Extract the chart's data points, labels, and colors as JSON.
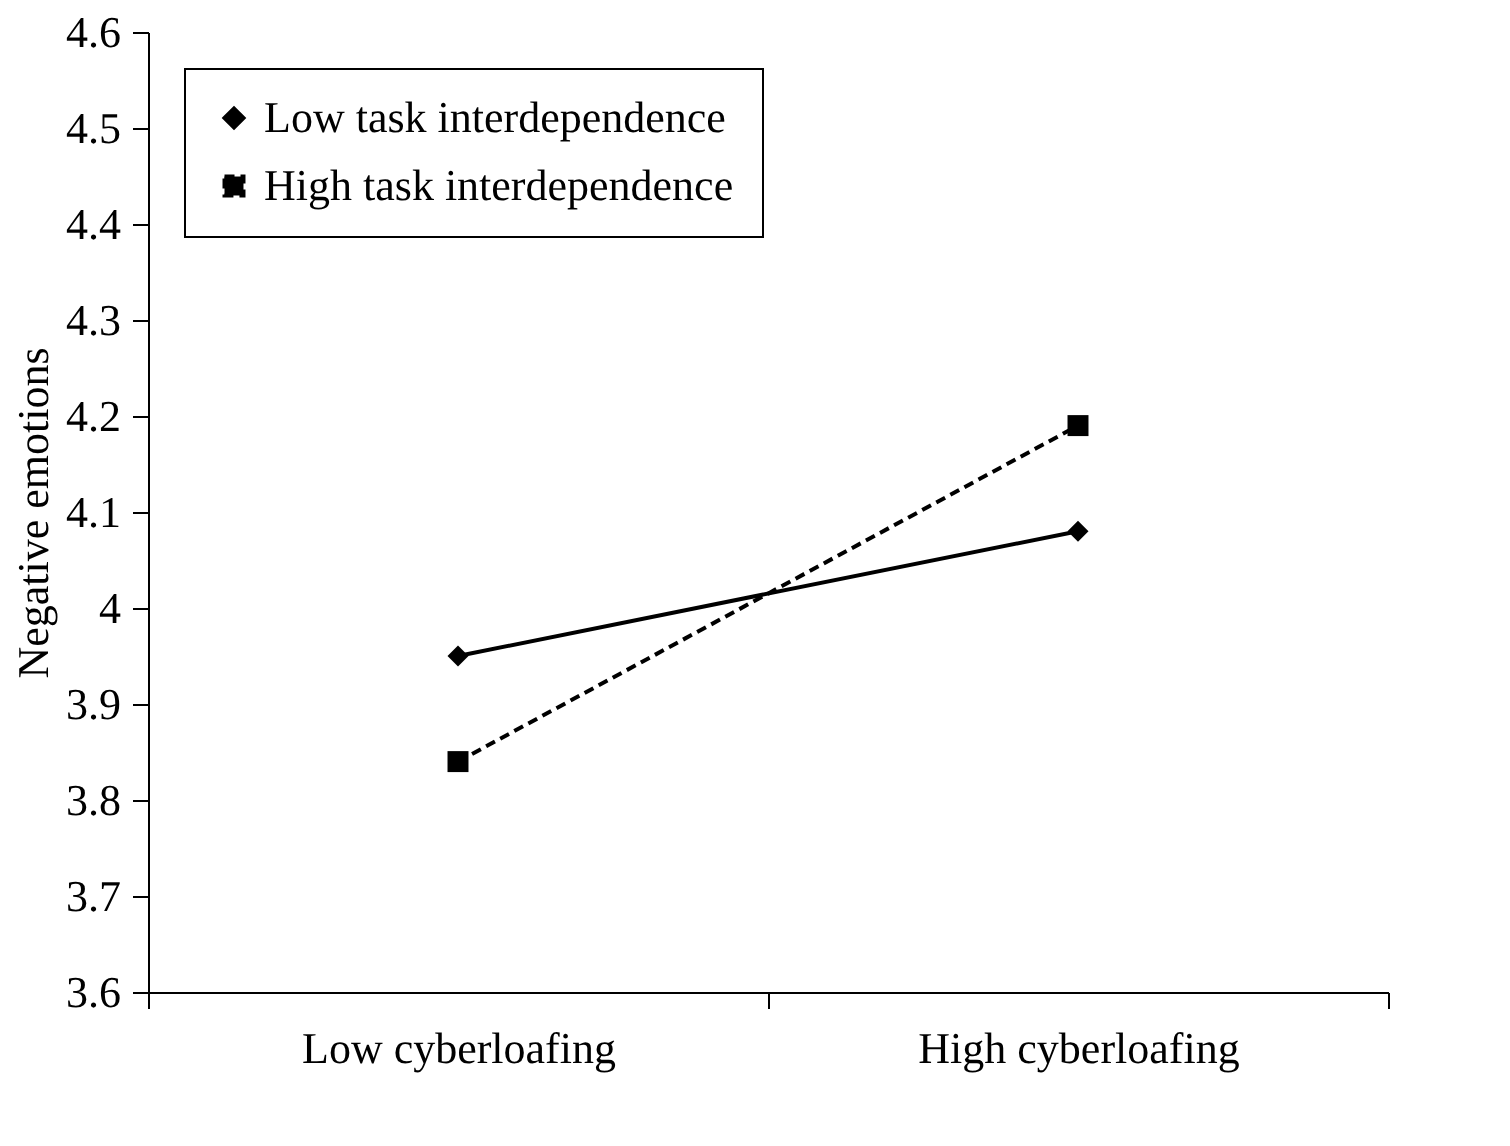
{
  "chart_data": {
    "type": "line",
    "ylabel": "Negative emotions",
    "categories": [
      "Low cyberloafing",
      "High cyberloafing"
    ],
    "series": [
      {
        "name": "Low task interdependence",
        "color": "#000000",
        "values": [
          3.95,
          4.08
        ],
        "marker": "diamond",
        "line_style": "solid"
      },
      {
        "name": "High task interdependence",
        "color": "#000000",
        "values": [
          3.84,
          4.19
        ],
        "marker": "square",
        "line_style": "dashed"
      }
    ],
    "ylim": [
      3.6,
      4.6
    ],
    "yticks": [
      3.6,
      3.7,
      3.8,
      3.9,
      4,
      4.1,
      4.2,
      4.3,
      4.4,
      4.5,
      4.6
    ],
    "grid": false,
    "legend": "top left"
  }
}
